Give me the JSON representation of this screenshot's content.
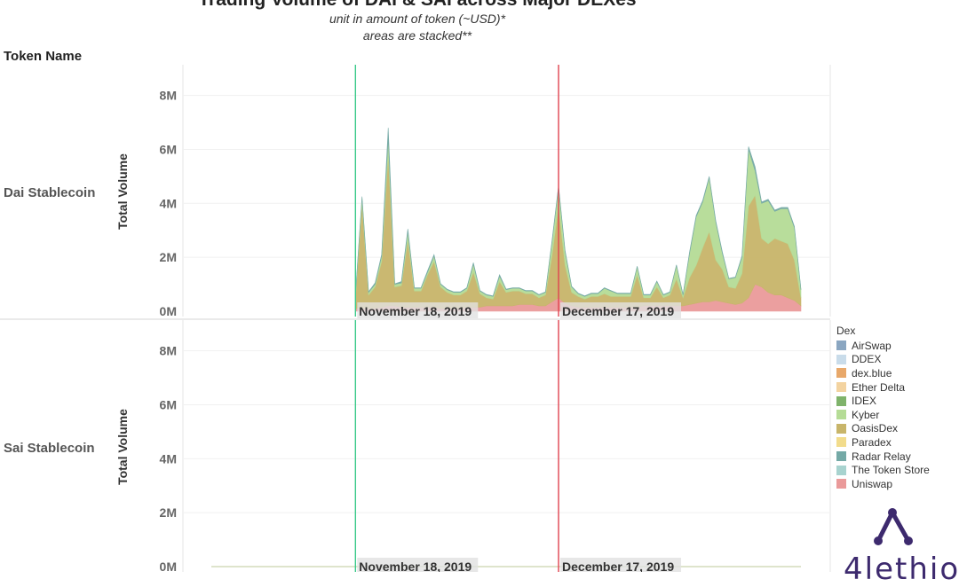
{
  "header": {
    "title": "Trading Volume of DAI & SAI across Major DEXes",
    "subtitle_line1": "unit in amount of token (~USD)*",
    "subtitle_line2": "areas are stacked**",
    "row_header": "Token Name"
  },
  "legend": {
    "title": "Dex",
    "items": [
      {
        "label": "AirSwap",
        "color": "#8aa6c1"
      },
      {
        "label": "DDEX",
        "color": "#c9dcea"
      },
      {
        "label": "dex.blue",
        "color": "#e8a86a"
      },
      {
        "label": "Ether Delta",
        "color": "#f3d3a0"
      },
      {
        "label": "IDEX",
        "color": "#7fb36b"
      },
      {
        "label": "Kyber",
        "color": "#b5dc96"
      },
      {
        "label": "OasisDex",
        "color": "#c8b56a"
      },
      {
        "label": "Paradex",
        "color": "#f2dc8c"
      },
      {
        "label": "Radar Relay",
        "color": "#74a9a6"
      },
      {
        "label": "The Token Store",
        "color": "#a8d3cf"
      },
      {
        "label": "Uniswap",
        "color": "#ea9a9a"
      }
    ]
  },
  "logo": {
    "text": "4lethio"
  },
  "chart_data": {
    "type": "area",
    "stacked": true,
    "ylabel": "Total Volume",
    "y_ticks": [
      "0M",
      "2M",
      "4M",
      "6M",
      "8M"
    ],
    "ylim": [
      0,
      9
    ],
    "x_index_range": [
      0,
      90
    ],
    "reference_lines": [
      {
        "label": "November 18, 2019",
        "color": "#3ac98a",
        "x_index": 22
      },
      {
        "label": "December 17, 2019",
        "color": "#e0434f",
        "x_index": 53
      }
    ],
    "panels": [
      {
        "token": "Dai Stablecoin",
        "start_index": 22,
        "series": [
          {
            "name": "Uniswap",
            "values": [
              0,
              0,
              0,
              0,
              0,
              0,
              0,
              0,
              0,
              0,
              0,
              0,
              0,
              0,
              0,
              0,
              0,
              0,
              0,
              0,
              0,
              0,
              0.1,
              0.1,
              0.1,
              0.1,
              0.15,
              0.2,
              0.2,
              0.15,
              0.15,
              0.15,
              0.15,
              0.15,
              0.15,
              0.1,
              0.1,
              0.1,
              0.1,
              0.15,
              0.15,
              0.15,
              0.2,
              0.2,
              0.2,
              0.2,
              0.2,
              0.25,
              0.25,
              0.25,
              0.2,
              0.2,
              0.35,
              0.5,
              0.3,
              0.2,
              0.15,
              0.15,
              0.15,
              0.15,
              0.15,
              0.15,
              0.15,
              0.15,
              0.15,
              0.15,
              0.2,
              0.2,
              0.2,
              0.2,
              0.2,
              0.2,
              0.2,
              0.25,
              0.3,
              0.35,
              0.35,
              0.4,
              0.35,
              0.3,
              0.25,
              0.3,
              0.5,
              1.0,
              0.9,
              0.7,
              0.6,
              0.6,
              0.5,
              0.4,
              0.2
            ]
          },
          {
            "name": "OasisDex",
            "values": [
              0,
              0,
              0,
              0,
              0,
              0,
              0,
              0,
              0,
              0,
              0,
              0,
              0,
              0,
              0,
              0,
              0,
              0,
              0,
              0,
              0,
              0,
              0.4,
              3.9,
              0.5,
              0.8,
              1.7,
              5.6,
              0.7,
              0.8,
              2.5,
              0.6,
              0.6,
              1.2,
              1.7,
              0.8,
              0.6,
              0.5,
              0.5,
              0.6,
              1.3,
              0.5,
              0.3,
              0.25,
              0.9,
              0.5,
              0.55,
              0.5,
              0.4,
              0.4,
              0.3,
              0.4,
              1.7,
              3.4,
              1.4,
              0.5,
              0.4,
              0.3,
              0.4,
              0.4,
              0.5,
              0.4,
              0.4,
              0.4,
              0.4,
              1.2,
              0.3,
              0.3,
              0.7,
              0.3,
              0.4,
              1.0,
              0.3,
              1.0,
              1.4,
              2.0,
              2.6,
              1.5,
              1.2,
              0.6,
              0.6,
              1.1,
              3.4,
              3.3,
              1.8,
              1.8,
              2.1,
              2.0,
              2.0,
              1.5,
              0.3
            ]
          },
          {
            "name": "Kyber",
            "values": [
              0,
              0,
              0,
              0,
              0,
              0,
              0,
              0,
              0,
              0,
              0,
              0,
              0,
              0,
              0,
              0,
              0,
              0,
              0,
              0,
              0,
              0,
              0.1,
              0.2,
              0.1,
              0.1,
              0.2,
              0.6,
              0.1,
              0.1,
              0.3,
              0.1,
              0.1,
              0.1,
              0.2,
              0.1,
              0.1,
              0.1,
              0.1,
              0.1,
              0.3,
              0.1,
              0.1,
              0.1,
              0.2,
              0.1,
              0.1,
              0.1,
              0.1,
              0.1,
              0.1,
              0.1,
              0.5,
              0.7,
              0.5,
              0.2,
              0.1,
              0.1,
              0.1,
              0.1,
              0.2,
              0.2,
              0.1,
              0.1,
              0.1,
              0.3,
              0.1,
              0.1,
              0.2,
              0.1,
              0.1,
              0.5,
              0.1,
              0.9,
              1.8,
              1.7,
              2.0,
              1.4,
              0.6,
              0.3,
              0.4,
              0.6,
              2.1,
              0.9,
              1.3,
              1.6,
              1.0,
              1.2,
              1.3,
              1.2,
              0.3
            ]
          },
          {
            "name": "Radar Relay",
            "values": [
              0,
              0,
              0,
              0,
              0,
              0,
              0,
              0,
              0,
              0,
              0,
              0,
              0,
              0,
              0,
              0,
              0,
              0,
              0,
              0,
              0,
              0,
              0.02,
              0.05,
              0.02,
              0.05,
              0.05,
              0.4,
              0.02,
              0.05,
              0.1,
              0.02,
              0.02,
              0.05,
              0.05,
              0.02,
              0.02,
              0.02,
              0.02,
              0.02,
              0.05,
              0.02,
              0.02,
              0.02,
              0.05,
              0.02,
              0.02,
              0.02,
              0.02,
              0.02,
              0.02,
              0.02,
              0.05,
              0.05,
              0.05,
              0.02,
              0.02,
              0.02,
              0.02,
              0.02,
              0.02,
              0.02,
              0.02,
              0.02,
              0.02,
              0.02,
              0.02,
              0.02,
              0.02,
              0.02,
              0.02,
              0.02,
              0.02,
              0.05,
              0.05,
              0.05,
              0.05,
              0.05,
              0.05,
              0.02,
              0.02,
              0.05,
              0.1,
              0.15,
              0.05,
              0.05,
              0.05,
              0.05,
              0.05,
              0.05,
              0.02
            ]
          }
        ]
      },
      {
        "token": "Sai Stablecoin",
        "start_index": 0,
        "series": [
          {
            "name": "Uniswap",
            "values": [
              0,
              0,
              0,
              0,
              0,
              0,
              0,
              0,
              0,
              0,
              0,
              0,
              0,
              0,
              0,
              0,
              0,
              0,
              0,
              0,
              0,
              0,
              0,
              0,
              0,
              0,
              0,
              0,
              0,
              0,
              0,
              0,
              0,
              0,
              0,
              0,
              0,
              0,
              0,
              0,
              0,
              0,
              0,
              0,
              0,
              0,
              0,
              0,
              0,
              0,
              0,
              0,
              0,
              0,
              0,
              0,
              0,
              0,
              0,
              0,
              0,
              0,
              0,
              0,
              0,
              0,
              0,
              0,
              0,
              0,
              0,
              0,
              0,
              0,
              0,
              0,
              0,
              0,
              0,
              0,
              0,
              0,
              0,
              0,
              0,
              0,
              0,
              0,
              0,
              0,
              0
            ]
          },
          {
            "name": "AirSwap",
            "values": [
              0,
              0,
              0,
              0,
              0,
              0,
              0,
              0,
              0,
              0,
              0,
              0,
              0,
              0,
              0,
              0,
              0,
              0,
              0,
              0,
              0,
              0,
              0,
              0,
              0,
              0,
              0,
              0,
              0,
              0,
              0,
              0,
              0,
              0,
              0,
              0,
              0,
              0,
              0,
              0,
              0,
              0,
              0,
              0,
              0,
              0,
              0,
              0,
              0,
              0,
              0,
              0,
              0,
              0,
              0,
              0,
              0,
              0,
              0,
              0,
              0,
              0,
              0,
              0,
              0,
              0,
              0,
              0,
              0,
              0,
              0,
              0,
              0,
              0,
              0,
              0,
              0,
              0,
              0,
              0,
              0,
              0,
              0,
              0,
              0,
              0,
              0,
              0,
              0,
              0,
              0
            ]
          },
          {
            "name": "OasisDex",
            "values": [
              0,
              0,
              0,
              0,
              0,
              0,
              0,
              0,
              0,
              0,
              0,
              0,
              0,
              0,
              0,
              0,
              0,
              0,
              0,
              0,
              0,
              0,
              0,
              0,
              0,
              0,
              0,
              0,
              0,
              0,
              0,
              0,
              0,
              0,
              0,
              0,
              0,
              0,
              0,
              0,
              0,
              0,
              0,
              0,
              0,
              0,
              0,
              0,
              0,
              0,
              0,
              0,
              0,
              0,
              0,
              0,
              0,
              0,
              0,
              0,
              0,
              0,
              0,
              0,
              0,
              0,
              0,
              0,
              0,
              0,
              0,
              0,
              0,
              0,
              0,
              0,
              0,
              0,
              0,
              0,
              0,
              0,
              0,
              0,
              0,
              0,
              0,
              0,
              0,
              0,
              0
            ]
          },
          {
            "name": "Kyber",
            "values": [
              0,
              0,
              0,
              0,
              0,
              0,
              0,
              0,
              0,
              0,
              0,
              0,
              0,
              0,
              0,
              0,
              0,
              0,
              0,
              0,
              0,
              0,
              0,
              0,
              0,
              0,
              0,
              0,
              0,
              0,
              0,
              0,
              0,
              0,
              0,
              0,
              0,
              0,
              0,
              0,
              0,
              0,
              0,
              0,
              0,
              0,
              0,
              0,
              0,
              0,
              0,
              0,
              0,
              0,
              0,
              0,
              0,
              0,
              0,
              0,
              0,
              0,
              0,
              0,
              0,
              0,
              0,
              0,
              0,
              0,
              0,
              0,
              0,
              0,
              0,
              0,
              0,
              0,
              0,
              0,
              0,
              0,
              0,
              0,
              0,
              0,
              0,
              0,
              0,
              0,
              0
            ]
          }
        ]
      }
    ]
  }
}
